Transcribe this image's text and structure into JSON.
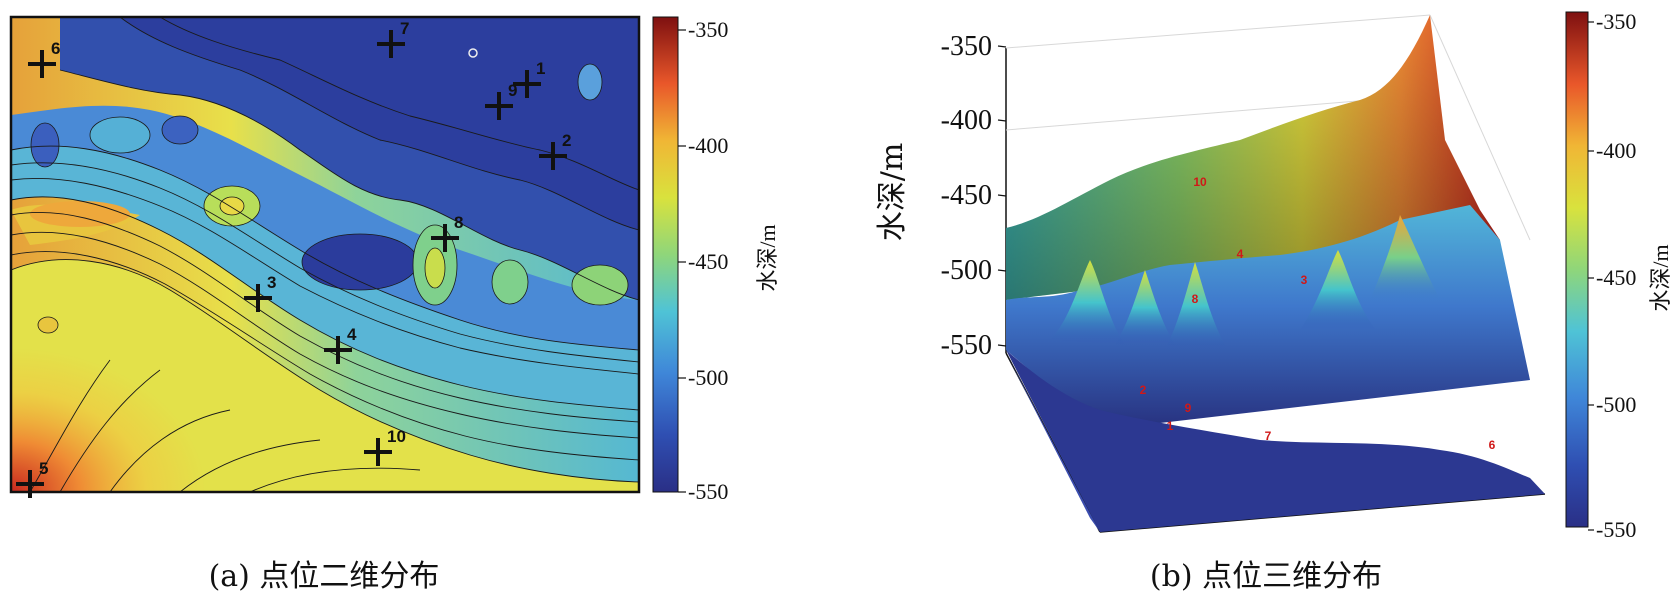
{
  "panel_a": {
    "caption": "(a) 点位二维分布",
    "wells": [
      {
        "label": "1"
      },
      {
        "label": "2"
      },
      {
        "label": "3"
      },
      {
        "label": "4"
      },
      {
        "label": "5"
      },
      {
        "label": "6"
      },
      {
        "label": "7"
      },
      {
        "label": "8"
      },
      {
        "label": "9"
      },
      {
        "label": "10"
      }
    ],
    "colorbar": {
      "label": "水深/m",
      "ticks": [
        "-350",
        "-400",
        "-450",
        "-500",
        "-550"
      ],
      "range": [
        -550,
        -345
      ]
    }
  },
  "panel_b": {
    "caption": "(b) 点位三维分布",
    "z_axis_label": "水深/m",
    "z_ticks": [
      "-350",
      "-400",
      "-450",
      "-500",
      "-550"
    ],
    "wells": [
      "10",
      "4",
      "3",
      "8",
      "2",
      "9",
      "1",
      "7",
      "6"
    ],
    "colorbar": {
      "label": "水深/m",
      "ticks": [
        "-350",
        "-400",
        "-450",
        "-500",
        "-550"
      ],
      "range": [
        -550,
        -345
      ]
    }
  },
  "colors": {
    "deep": "#2b3a9c",
    "mid_blue": "#4f86d6",
    "cyan": "#55c2d2",
    "green": "#7fd08c",
    "yellow": "#e7e54a",
    "orange": "#f2a03a",
    "red": "#d9302a",
    "darkred": "#8c1414"
  }
}
